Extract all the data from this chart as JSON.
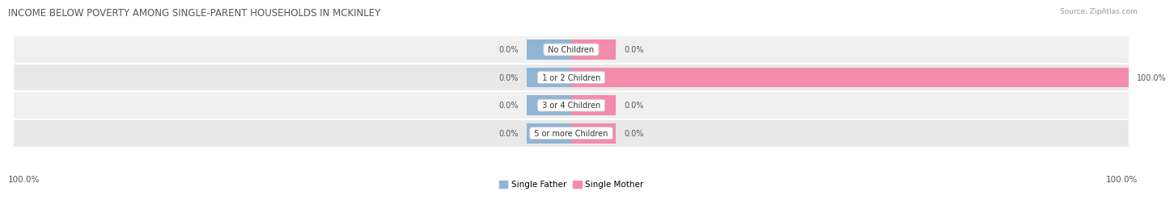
{
  "title": "INCOME BELOW POVERTY AMONG SINGLE-PARENT HOUSEHOLDS IN MCKINLEY",
  "source": "Source: ZipAtlas.com",
  "categories": [
    "No Children",
    "1 or 2 Children",
    "3 or 4 Children",
    "5 or more Children"
  ],
  "single_father": [
    0.0,
    0.0,
    0.0,
    0.0
  ],
  "single_mother": [
    0.0,
    100.0,
    0.0,
    0.0
  ],
  "father_color": "#92b4d4",
  "mother_color": "#f48bab",
  "row_bg_colors": [
    "#f0f0f0",
    "#e8e8e8",
    "#f0f0f0",
    "#e8e8e8"
  ],
  "label_color": "#555555",
  "title_color": "#555555",
  "source_color": "#999999",
  "axis_min": -100,
  "axis_max": 100,
  "min_bar_width": 8,
  "legend_labels": [
    "Single Father",
    "Single Mother"
  ],
  "bottom_left_label": "100.0%",
  "bottom_right_label": "100.0%"
}
